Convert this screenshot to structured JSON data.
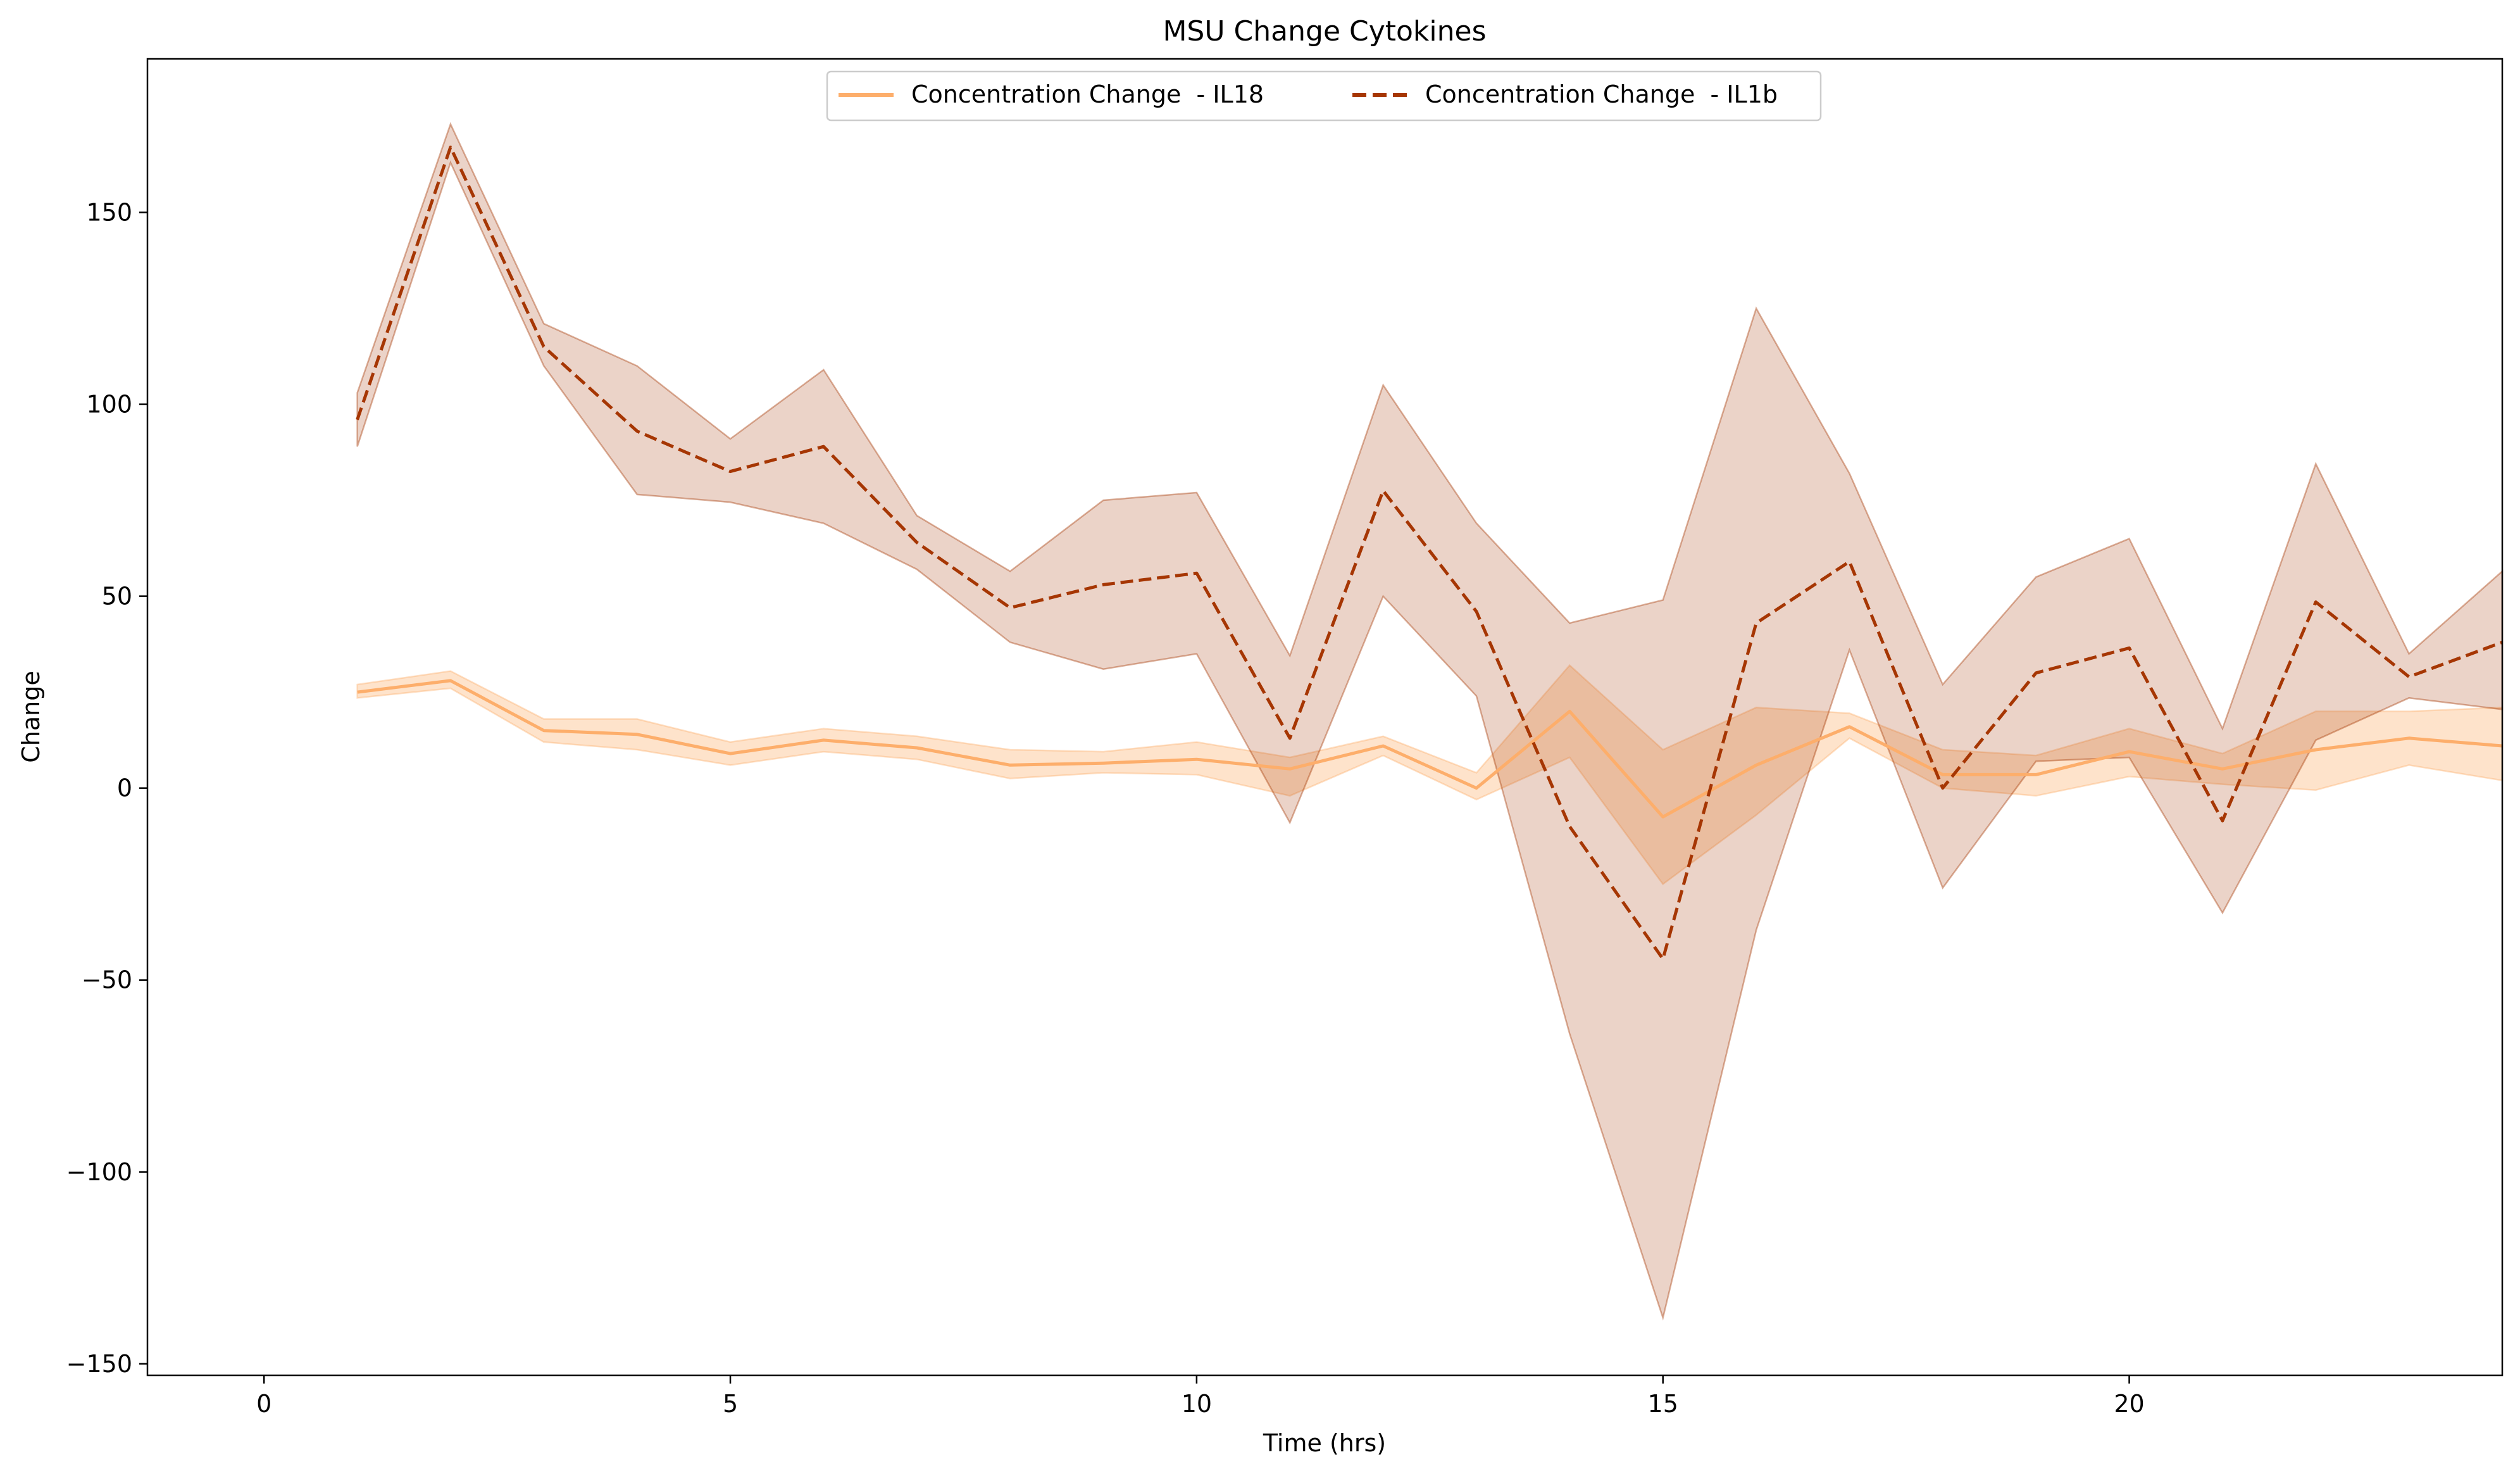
{
  "chart_data": {
    "type": "line",
    "title": "MSU Change Cytokines",
    "xlabel": "Time (hrs)",
    "ylabel": "Change",
    "xlim": [
      -1.25,
      24
    ],
    "ylim": [
      -153,
      190
    ],
    "xticks": [
      0,
      5,
      10,
      15,
      20
    ],
    "xtick_labels": [
      "0",
      "5",
      "10",
      "15",
      "20"
    ],
    "yticks": [
      -150,
      -100,
      -50,
      0,
      50,
      100,
      150
    ],
    "ytick_labels": [
      "−150",
      "−100",
      "−50",
      "0",
      "50",
      "100",
      "150"
    ],
    "grid": false,
    "legend_position": "top-center",
    "x": [
      1,
      2,
      3,
      4,
      5,
      6,
      7,
      8,
      9,
      10,
      11,
      12,
      13,
      14,
      15,
      16,
      17,
      18,
      19,
      20,
      21,
      22,
      23,
      24
    ],
    "series": [
      {
        "name": "Concentration Change  - IL18",
        "color": "#fdae6b",
        "line_style": "solid",
        "values": [
          25,
          28,
          15,
          14,
          9,
          12.5,
          10.5,
          6,
          6.5,
          7.5,
          5,
          11,
          0,
          20,
          -7.5,
          6,
          16,
          3.5,
          3.5,
          9.5,
          5,
          10,
          13,
          11
        ],
        "upper": [
          27,
          30.5,
          18,
          18,
          12,
          15.5,
          13.5,
          10,
          9.5,
          12,
          8,
          13.5,
          4,
          32,
          10,
          21,
          19.5,
          10,
          8.5,
          15.5,
          9,
          20,
          20,
          21
        ],
        "lower": [
          23.5,
          26,
          12,
          10,
          6,
          9.5,
          7.5,
          2.5,
          4,
          3.5,
          -2,
          8.5,
          -3,
          8,
          -25,
          -7,
          13,
          0,
          -2,
          3,
          1,
          -0.5,
          6,
          2
        ]
      },
      {
        "name": "Concentration Change  - IL1b",
        "color": "#a63603",
        "line_style": "dashed",
        "values": [
          96,
          167,
          115,
          93,
          82.5,
          89,
          64,
          47,
          53,
          56,
          13,
          77.5,
          46,
          -10,
          -44.5,
          43,
          59,
          0,
          30,
          36.5,
          -8.5,
          48.5,
          29,
          38
        ],
        "upper": [
          103,
          173,
          121,
          110,
          91,
          109,
          71,
          56.5,
          75,
          77,
          34.5,
          105,
          69,
          43,
          49,
          125,
          82,
          27,
          55,
          65,
          15.5,
          84.5,
          35,
          56.5
        ],
        "lower": [
          89,
          163,
          110,
          76.5,
          74.5,
          69,
          57,
          38,
          31,
          35,
          -9,
          50,
          24,
          -64,
          -138,
          -37,
          36,
          -26,
          7,
          8,
          -32.5,
          12.5,
          23.5,
          20.5
        ]
      }
    ]
  }
}
